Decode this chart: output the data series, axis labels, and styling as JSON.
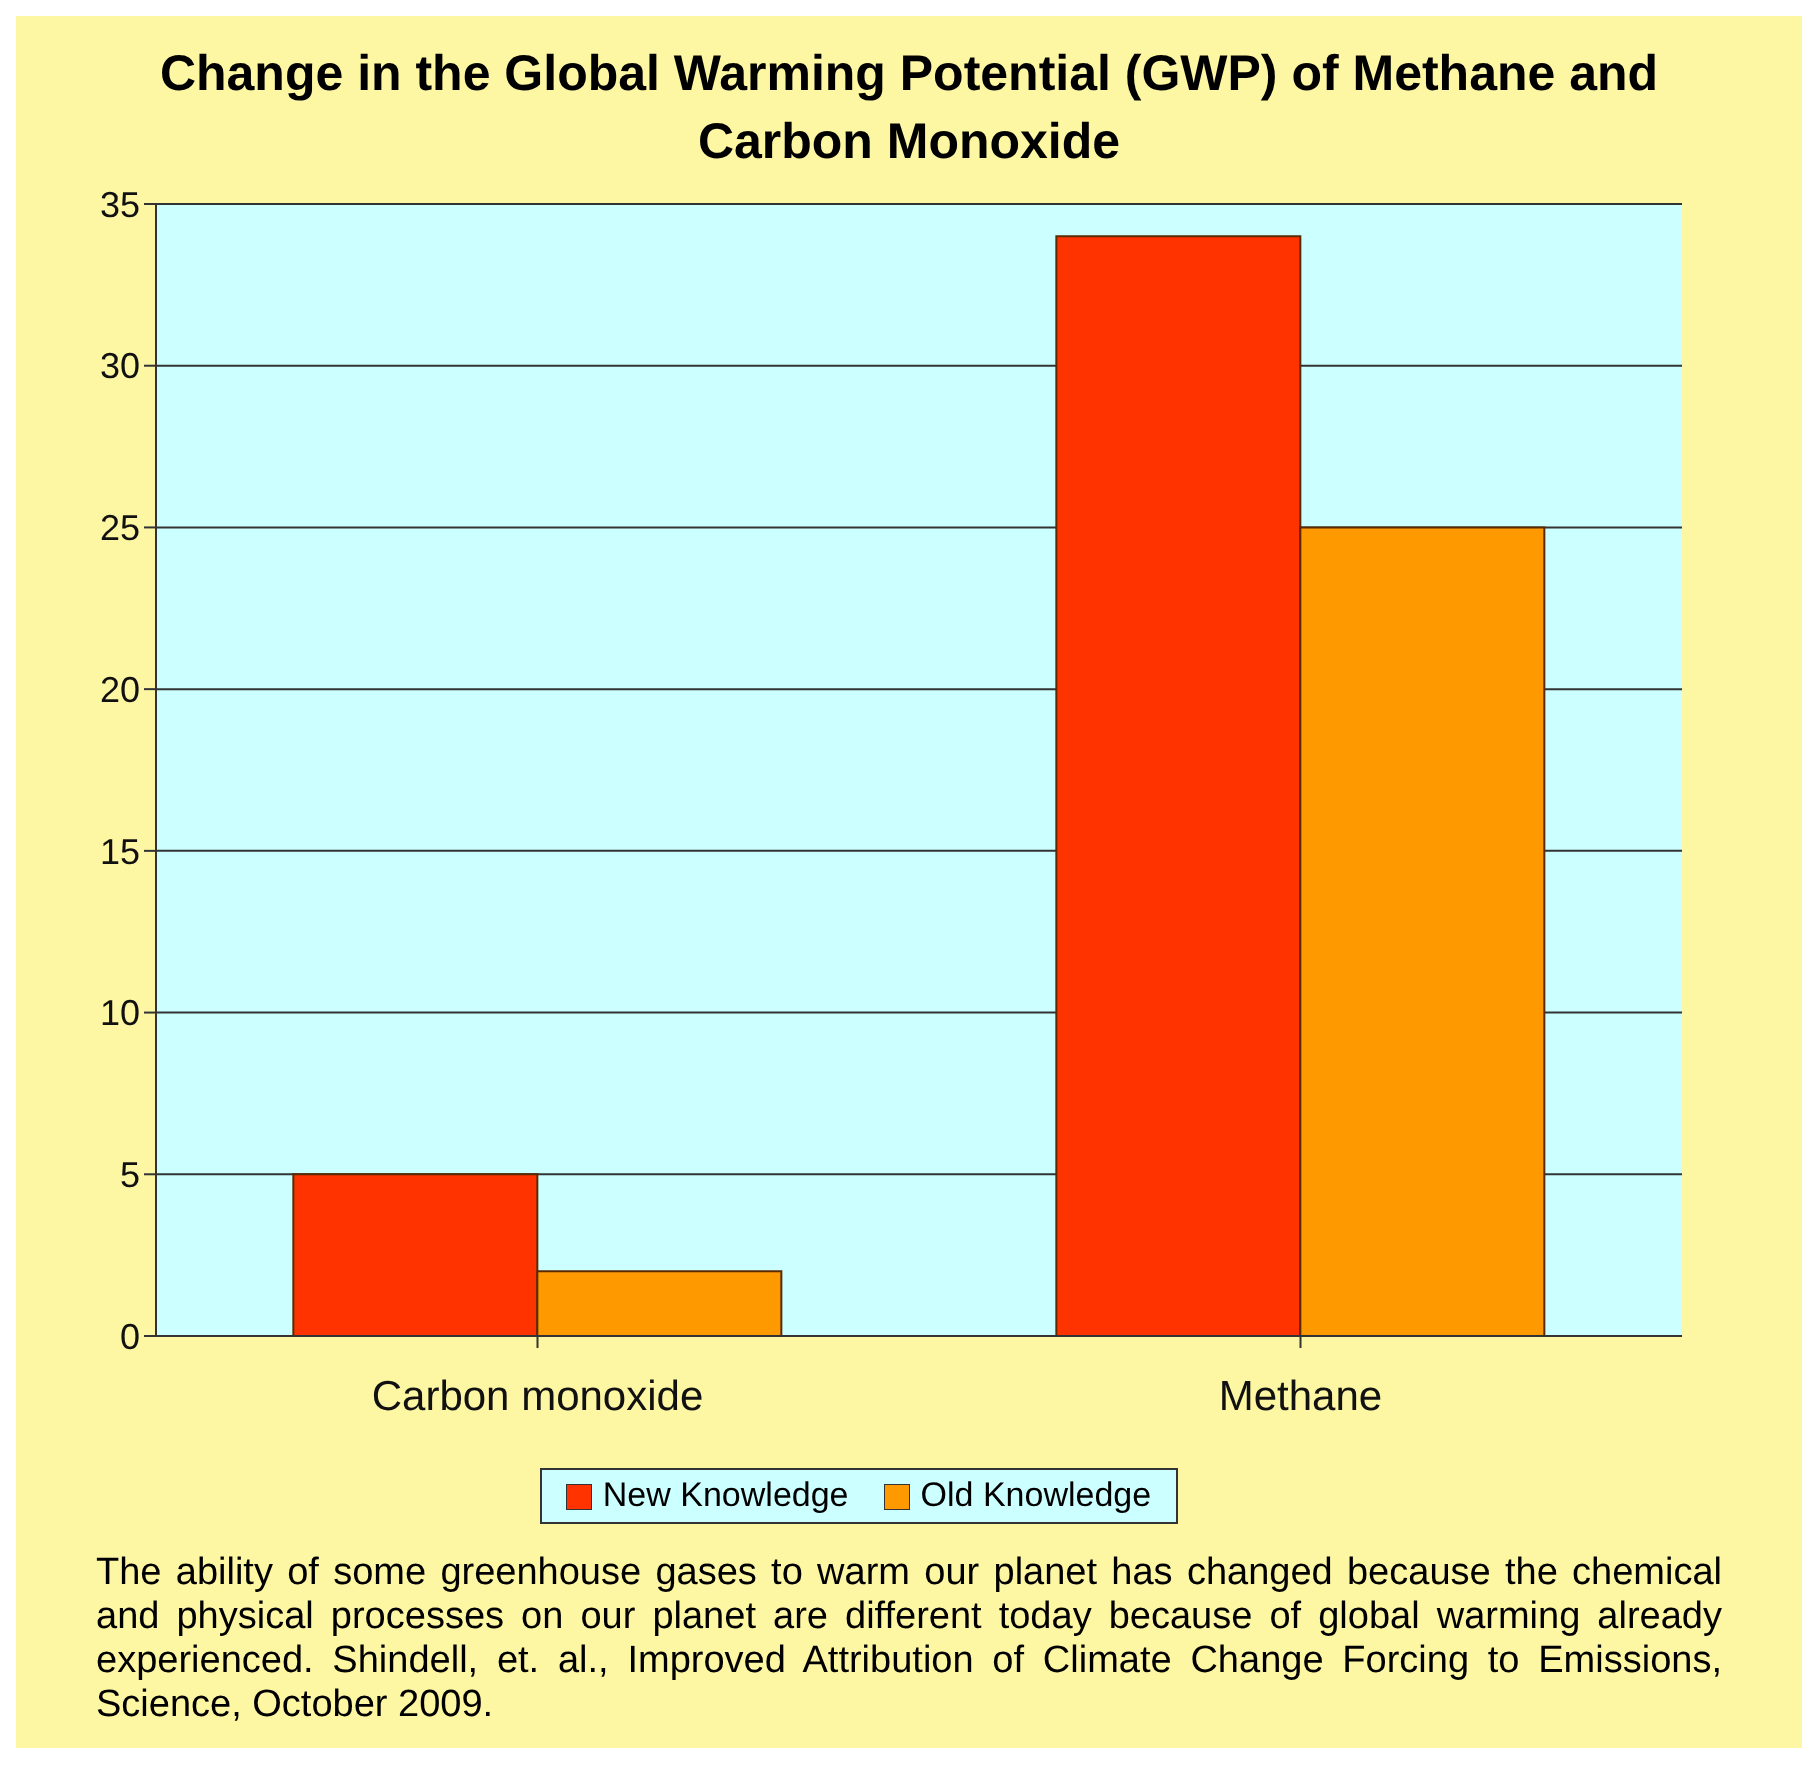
{
  "chart_data": {
    "type": "bar",
    "title": "Change in the Global Warming Potential (GWP) of Methane and Carbon Monoxide",
    "categories": [
      "Carbon monoxide",
      "Methane"
    ],
    "series": [
      {
        "name": "New Knowledge",
        "color": "#ff3300",
        "values": [
          5,
          34
        ]
      },
      {
        "name": "Old Knowledge",
        "color": "#ff9900",
        "values": [
          2,
          25
        ]
      }
    ],
    "ylim": [
      0,
      35
    ],
    "yticks": [
      0,
      5,
      10,
      15,
      20,
      25,
      30,
      35
    ],
    "grid": "y",
    "legend": "bottom",
    "annotations": [
      "The ability of some greenhouse gases to warm our planet has changed because the chemical and physical processes on our planet are different today because of global warming already experienced. Shindell, et. al., Improved Attribution of Climate Change Forcing to Emissions, Science, October 2009."
    ]
  }
}
